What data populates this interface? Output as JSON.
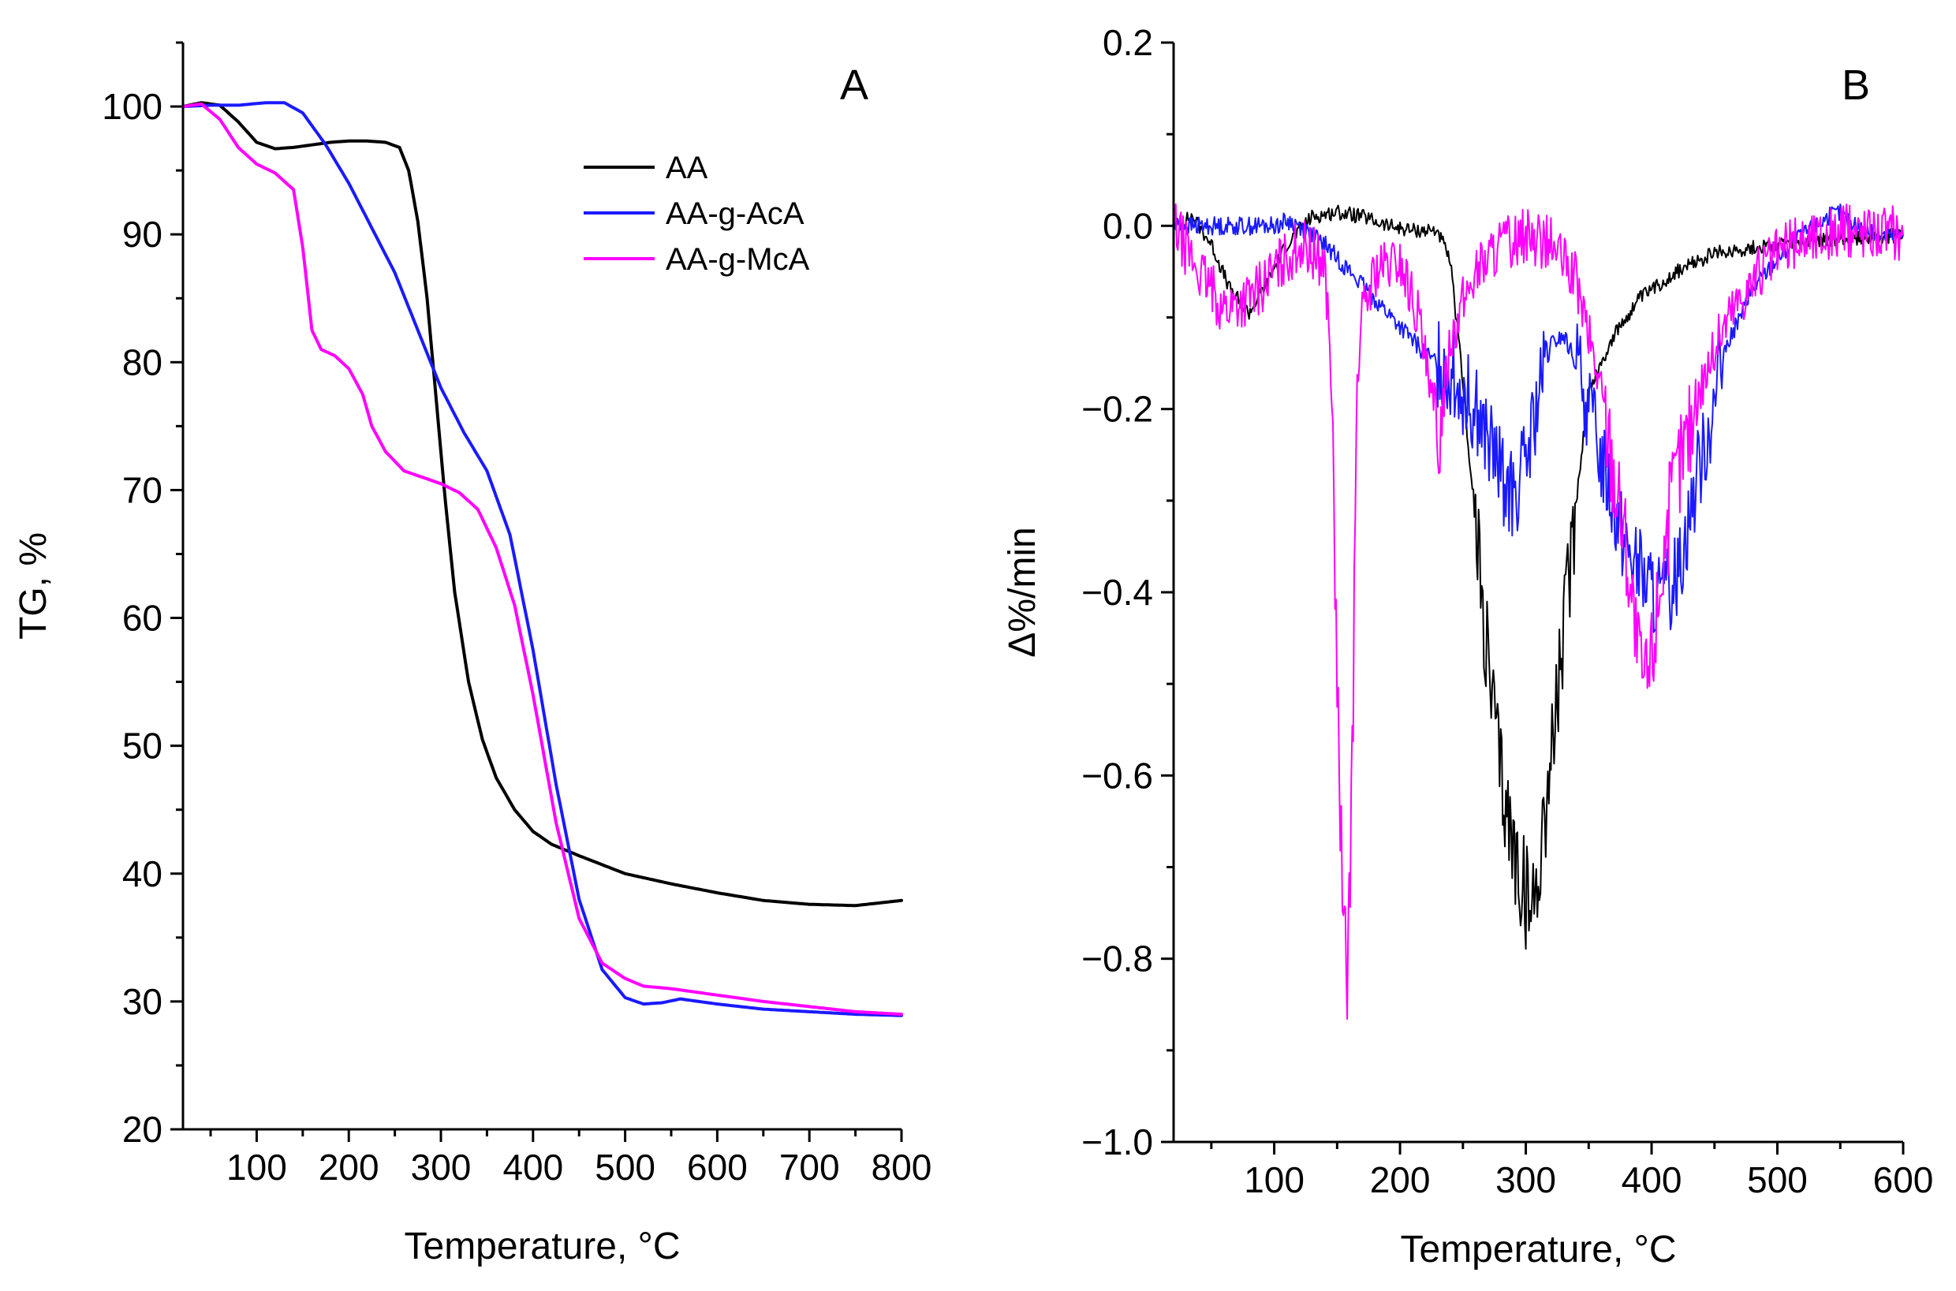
{
  "chart_data": [
    {
      "panel": "A",
      "type": "line",
      "title": "",
      "panel_label": "A",
      "xlabel": "Temperature, °C",
      "ylabel": "TG, %",
      "xlim": [
        20,
        800
      ],
      "ylim": [
        20,
        105
      ],
      "xticks": [
        100,
        200,
        300,
        400,
        500,
        600,
        700,
        800
      ],
      "yticks": [
        20,
        30,
        40,
        50,
        60,
        70,
        80,
        90,
        100
      ],
      "legend_position": "top-right",
      "series": [
        {
          "name": "AA",
          "color": "#000000",
          "x": [
            20,
            40,
            60,
            80,
            100,
            120,
            140,
            160,
            180,
            200,
            220,
            240,
            255,
            265,
            275,
            285,
            295,
            305,
            315,
            330,
            345,
            360,
            380,
            400,
            420,
            450,
            500,
            550,
            600,
            650,
            700,
            750,
            800
          ],
          "y": [
            100,
            100.3,
            100.1,
            98.8,
            97.2,
            96.7,
            96.8,
            97.0,
            97.2,
            97.3,
            97.3,
            97.2,
            96.8,
            95.0,
            91.0,
            85.0,
            77.0,
            69.0,
            62.0,
            55.0,
            50.5,
            47.5,
            45.0,
            43.3,
            42.3,
            41.4,
            40.0,
            39.2,
            38.5,
            37.9,
            37.6,
            37.5,
            37.9
          ]
        },
        {
          "name": "AA-g-AcA",
          "color": "#1a1aff",
          "x": [
            20,
            50,
            80,
            110,
            130,
            150,
            175,
            200,
            225,
            250,
            275,
            300,
            325,
            350,
            375,
            400,
            425,
            450,
            475,
            500,
            520,
            540,
            560,
            600,
            650,
            700,
            750,
            800
          ],
          "y": [
            100,
            100.1,
            100.1,
            100.3,
            100.3,
            99.5,
            97.0,
            94.0,
            90.5,
            87.0,
            82.5,
            78.0,
            74.5,
            71.5,
            66.5,
            57.5,
            47.0,
            38.0,
            32.5,
            30.3,
            29.8,
            29.9,
            30.2,
            29.8,
            29.4,
            29.2,
            29.0,
            28.9
          ]
        },
        {
          "name": "AA-g-McA",
          "color": "#ff00ff",
          "x": [
            20,
            40,
            60,
            80,
            100,
            120,
            140,
            150,
            160,
            170,
            185,
            200,
            215,
            225,
            240,
            260,
            280,
            300,
            320,
            340,
            360,
            380,
            400,
            425,
            450,
            475,
            500,
            520,
            550,
            600,
            650,
            700,
            750,
            800
          ],
          "y": [
            100,
            100.2,
            99.0,
            96.8,
            95.5,
            94.8,
            93.5,
            89.0,
            82.5,
            81.0,
            80.5,
            79.5,
            77.5,
            75.0,
            73.0,
            71.5,
            71.0,
            70.5,
            69.8,
            68.5,
            65.5,
            61.0,
            54.0,
            44.0,
            36.5,
            33.0,
            31.8,
            31.2,
            31.0,
            30.5,
            30.0,
            29.6,
            29.2,
            29.0
          ]
        }
      ]
    },
    {
      "panel": "B",
      "type": "line",
      "title": "",
      "panel_label": "B",
      "xlabel": "Temperature, °C",
      "ylabel": "Δ%/min",
      "xlim": [
        20,
        600
      ],
      "ylim": [
        -1.0,
        0.2
      ],
      "xticks": [
        100,
        200,
        300,
        400,
        500,
        600
      ],
      "yticks": [
        0.2,
        0.0,
        -0.2,
        -0.4,
        -0.6,
        -0.8,
        -1.0
      ],
      "ytick_labels": [
        "0.2",
        "0.0",
        "−0.2",
        "−0.4",
        "−0.6",
        "−0.8",
        "−1.0"
      ],
      "series": [
        {
          "name": "AA",
          "color": "#000000",
          "x": [
            20,
            35,
            50,
            65,
            80,
            95,
            110,
            130,
            150,
            170,
            190,
            210,
            230,
            240,
            250,
            260,
            270,
            280,
            290,
            300,
            305,
            310,
            320,
            330,
            340,
            350,
            370,
            390,
            420,
            450,
            500,
            550,
            600
          ],
          "y": [
            0.0,
            0.01,
            -0.02,
            -0.07,
            -0.095,
            -0.06,
            -0.02,
            0.01,
            0.015,
            0.01,
            0.0,
            -0.005,
            -0.005,
            -0.04,
            -0.17,
            -0.33,
            -0.48,
            -0.6,
            -0.68,
            -0.73,
            -0.75,
            -0.7,
            -0.58,
            -0.45,
            -0.3,
            -0.18,
            -0.12,
            -0.08,
            -0.05,
            -0.03,
            -0.02,
            -0.015,
            -0.01
          ]
        },
        {
          "name": "AA-g-AcA",
          "color": "#1a1aff",
          "x": [
            20,
            60,
            100,
            110,
            120,
            140,
            160,
            180,
            200,
            220,
            240,
            260,
            280,
            290,
            300,
            310,
            320,
            330,
            340,
            360,
            380,
            400,
            410,
            420,
            440,
            460,
            480,
            500,
            520,
            540,
            550,
            560,
            580,
            600
          ],
          "y": [
            0.0,
            0.0,
            0.0,
            0.005,
            0.0,
            -0.02,
            -0.05,
            -0.08,
            -0.11,
            -0.14,
            -0.16,
            -0.2,
            -0.27,
            -0.3,
            -0.26,
            -0.19,
            -0.13,
            -0.12,
            -0.15,
            -0.25,
            -0.35,
            -0.4,
            -0.41,
            -0.38,
            -0.25,
            -0.13,
            -0.07,
            -0.035,
            -0.01,
            0.01,
            0.015,
            0.0,
            -0.01,
            -0.01
          ]
        },
        {
          "name": "AA-g-McA",
          "color": "#ff00ff",
          "x": [
            20,
            40,
            60,
            80,
            100,
            120,
            140,
            145,
            150,
            155,
            158,
            162,
            166,
            170,
            180,
            200,
            215,
            225,
            230,
            240,
            260,
            280,
            300,
            320,
            340,
            360,
            380,
            390,
            395,
            400,
            410,
            420,
            440,
            460,
            480,
            500,
            520,
            540,
            560,
            580,
            600
          ],
          "y": [
            0.0,
            -0.05,
            -0.09,
            -0.08,
            -0.05,
            -0.02,
            -0.04,
            -0.15,
            -0.5,
            -0.78,
            -0.82,
            -0.6,
            -0.15,
            -0.1,
            -0.05,
            -0.04,
            -0.1,
            -0.2,
            -0.24,
            -0.12,
            -0.05,
            -0.02,
            -0.01,
            -0.02,
            -0.06,
            -0.18,
            -0.35,
            -0.48,
            -0.5,
            -0.47,
            -0.35,
            -0.27,
            -0.17,
            -0.1,
            -0.06,
            -0.03,
            -0.015,
            -0.01,
            -0.005,
            -0.005,
            -0.01
          ]
        }
      ]
    }
  ]
}
